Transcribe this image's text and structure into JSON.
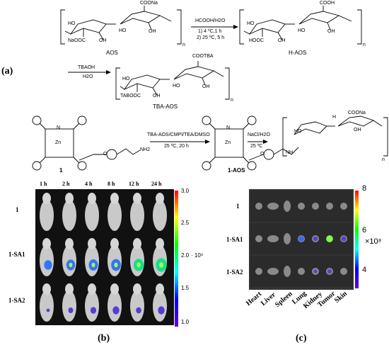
{
  "panel_a": {
    "label": "(a)",
    "scheme1": {
      "reactant_name": "AOS",
      "product_name": "H-AOS",
      "reagent_top": "HCOOH/H2O",
      "cond1": "1) 4 ºC,1 h",
      "cond2": "2) 25 ºC, 5 h",
      "reactant_groups": {
        "coona": "COONa",
        "ho1": "HO",
        "oh1": "OH",
        "naooc": "NaOOC",
        "oh2": "OH",
        "ho2": "HO",
        "n": "n"
      },
      "product_groups": {
        "cooh": "COOH",
        "ho1": "HO",
        "oh1": "OH",
        "hooc": "HOOC",
        "oh2": "OH",
        "ho2": "HO",
        "n": "n"
      }
    },
    "scheme2": {
      "reagent_top": "TBAOH",
      "reagent_bottom": "H2O",
      "product_name": "TBA-AOS",
      "groups": {
        "cootba": "COOTBA",
        "ho1": "HO",
        "oh1": "OH",
        "tabooc": "TABOOC",
        "oh2": "OH",
        "ho2": "HO",
        "n": "n"
      }
    },
    "scheme3": {
      "reactant_name": "1",
      "product_name": "1-AOS",
      "reagent_top": "TBA-AOS/CMPI/TEA/DMSO",
      "cond_bottom": "25 ºC, 20 h",
      "reagent2_top": "NaCl/H2O",
      "cond2_bottom": "25 ºC",
      "pc_atoms": {
        "n": "N",
        "zn": "Zn",
        "o": "O",
        "nh2": "NH2",
        "nh": "NH",
        "o2": "O",
        "coona": "COONa",
        "h": "H",
        "oh": "OH",
        "ho": "HO",
        "n_rep": "n"
      }
    }
  },
  "panel_b": {
    "label": "(b)",
    "time_labels": [
      "1 h",
      "2 h",
      "4 h",
      "8 h",
      "12 h",
      "24 h"
    ],
    "row_labels": [
      "1",
      "1-SA1",
      "1-SA2"
    ],
    "colorbar": {
      "ticks": [
        "3.0",
        "2.5",
        "2.0",
        "1.5",
        "1.0"
      ],
      "unit": "· 10⁹",
      "colors": [
        "#ff0000",
        "#ffff00",
        "#00ff00",
        "#00ffff",
        "#0000ff",
        "#6600cc"
      ]
    },
    "signal": {
      "row_1": [
        0,
        0,
        0,
        0,
        0,
        0
      ],
      "row_sa1": [
        0.6,
        0.7,
        0.75,
        0.8,
        0.85,
        0.95
      ],
      "row_sa2": [
        0.05,
        0.25,
        0.35,
        0.45,
        0.3,
        0.45
      ]
    }
  },
  "panel_c": {
    "label": "(c)",
    "row_labels": [
      "1",
      "1-SA1",
      "1-SA2"
    ],
    "organs": [
      "Heart",
      "Liver",
      "Spleen",
      "Lung",
      "Kidney",
      "Tumor",
      "Skin"
    ],
    "colorbar": {
      "ticks": [
        "8",
        "6",
        "4"
      ],
      "unit": "×10⁸",
      "colors": [
        "#ff0000",
        "#ffff00",
        "#00ff00",
        "#00ffff",
        "#0000ff",
        "#6600cc"
      ]
    }
  }
}
